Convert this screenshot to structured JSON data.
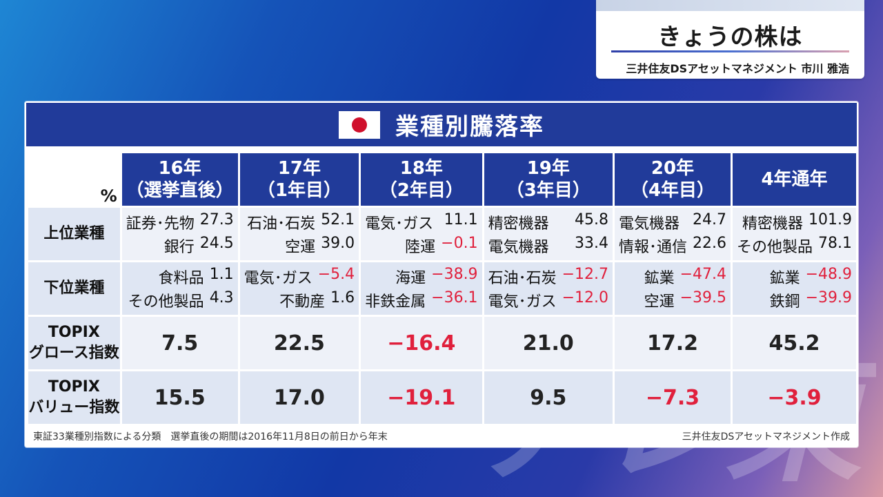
{
  "header": {
    "title": "きょうの株は",
    "presenter": "三井住友DSアセットマネジメント 市川 雅浩"
  },
  "panel": {
    "title": "業種別騰落率",
    "unit": "%",
    "columns": [
      {
        "line1": "16年",
        "line2": "（選挙直後）"
      },
      {
        "line1": "17年",
        "line2": "（1年目）"
      },
      {
        "line1": "18年",
        "line2": "（2年目）"
      },
      {
        "line1": "19年",
        "line2": "（3年目）"
      },
      {
        "line1": "20年",
        "line2": "（4年目）"
      },
      {
        "line1": "4年通年",
        "line2": ""
      }
    ],
    "rows": {
      "upper": {
        "label": "上位業種",
        "cells": [
          [
            {
              "name": "証券･先物",
              "value": "27.3"
            },
            {
              "name": "銀行",
              "value": "24.5"
            }
          ],
          [
            {
              "name": "石油･石炭",
              "value": "52.1"
            },
            {
              "name": "空運",
              "value": "39.0"
            }
          ],
          [
            {
              "name": "電気･ガス",
              "value": "11.1"
            },
            {
              "name": "陸運",
              "value": "−0.1"
            }
          ],
          [
            {
              "name": "精密機器",
              "value": "45.8"
            },
            {
              "name": "電気機器",
              "value": "33.4"
            }
          ],
          [
            {
              "name": "電気機器",
              "value": "24.7"
            },
            {
              "name": "情報･通信",
              "value": "22.6"
            }
          ],
          [
            {
              "name": "精密機器",
              "value": "101.9"
            },
            {
              "name": "その他製品",
              "value": "78.1"
            }
          ]
        ]
      },
      "lower": {
        "label": "下位業種",
        "cells": [
          [
            {
              "name": "食料品",
              "value": "1.1"
            },
            {
              "name": "その他製品",
              "value": "4.3"
            }
          ],
          [
            {
              "name": "電気･ガス",
              "value": "−5.4"
            },
            {
              "name": "不動産",
              "value": "1.6"
            }
          ],
          [
            {
              "name": "海運",
              "value": "−38.9"
            },
            {
              "name": "非鉄金属",
              "value": "−36.1"
            }
          ],
          [
            {
              "name": "石油･石炭",
              "value": "−12.7"
            },
            {
              "name": "電気･ガス",
              "value": "−12.0"
            }
          ],
          [
            {
              "name": "鉱業",
              "value": "−47.4"
            },
            {
              "name": "空運",
              "value": "−39.5"
            }
          ],
          [
            {
              "name": "鉱業",
              "value": "−48.9"
            },
            {
              "name": "鉄鋼",
              "value": "−39.9"
            }
          ]
        ]
      },
      "growth": {
        "label1": "TOPIX",
        "label2": "グロース指数",
        "values": [
          "7.5",
          "22.5",
          "−16.4",
          "21.0",
          "17.2",
          "45.2"
        ]
      },
      "value": {
        "label1": "TOPIX",
        "label2": "バリュー指数",
        "values": [
          "15.5",
          "17.0",
          "−19.1",
          "9.5",
          "−7.3",
          "−3.9"
        ]
      }
    },
    "footer_left": "東証33業種別指数による分類　選挙直後の期間は2016年11月8日の前日から年末",
    "footer_right": "三井住友DSアセットマネジメント作成"
  },
  "colors": {
    "header_blue": "#213b9a",
    "negative_red": "#e0203c",
    "flag_red": "#d0102c"
  },
  "watermark": "テレ東"
}
